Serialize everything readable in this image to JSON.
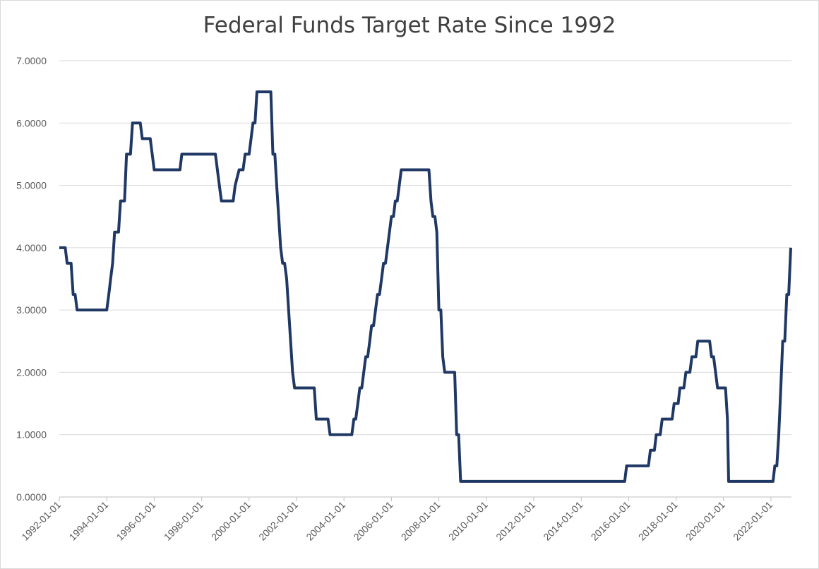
{
  "chart_data": {
    "type": "line",
    "title": "Federal Funds Target Rate Since 1992",
    "xlabel": "",
    "ylabel": "",
    "ylim": [
      0,
      7
    ],
    "xlim": [
      "1992-01-01",
      "2022-10-01"
    ],
    "grid": "horizontal",
    "legend": "none",
    "line_color": "#203864",
    "y_ticks": [
      "0.0000",
      "1.0000",
      "2.0000",
      "3.0000",
      "4.0000",
      "5.0000",
      "6.0000",
      "7.0000"
    ],
    "x_ticks": [
      "1992-01-01",
      "1994-01-01",
      "1996-01-01",
      "1998-01-01",
      "2000-01-01",
      "2002-01-01",
      "2004-01-01",
      "2006-01-01",
      "2008-01-01",
      "2010-01-01",
      "2012-01-01",
      "2014-01-01",
      "2016-01-01",
      "2018-01-01",
      "2020-01-01",
      "2022-01-01"
    ],
    "series": [
      {
        "name": "",
        "points": [
          [
            "1992-01-01",
            4.0
          ],
          [
            "1992-04-01",
            4.0
          ],
          [
            "1992-05-01",
            3.75
          ],
          [
            "1992-07-01",
            3.75
          ],
          [
            "1992-08-01",
            3.25
          ],
          [
            "1992-09-01",
            3.25
          ],
          [
            "1992-10-01",
            3.0
          ],
          [
            "1994-01-01",
            3.0
          ],
          [
            "1994-02-01",
            3.25
          ],
          [
            "1994-03-01",
            3.5
          ],
          [
            "1994-04-01",
            3.75
          ],
          [
            "1994-05-01",
            4.25
          ],
          [
            "1994-07-01",
            4.25
          ],
          [
            "1994-08-01",
            4.75
          ],
          [
            "1994-10-01",
            4.75
          ],
          [
            "1994-11-01",
            5.5
          ],
          [
            "1995-01-01",
            5.5
          ],
          [
            "1995-02-01",
            6.0
          ],
          [
            "1995-06-01",
            6.0
          ],
          [
            "1995-07-01",
            5.75
          ],
          [
            "1995-11-01",
            5.75
          ],
          [
            "1996-01-01",
            5.25
          ],
          [
            "1997-02-01",
            5.25
          ],
          [
            "1997-03-01",
            5.5
          ],
          [
            "1998-08-01",
            5.5
          ],
          [
            "1998-10-01",
            5.0
          ],
          [
            "1998-11-01",
            4.75
          ],
          [
            "1999-05-01",
            4.75
          ],
          [
            "1999-06-01",
            5.0
          ],
          [
            "1999-08-01",
            5.25
          ],
          [
            "1999-10-01",
            5.25
          ],
          [
            "1999-11-01",
            5.5
          ],
          [
            "2000-01-01",
            5.5
          ],
          [
            "2000-02-01",
            5.75
          ],
          [
            "2000-03-01",
            6.0
          ],
          [
            "2000-04-01",
            6.0
          ],
          [
            "2000-05-01",
            6.5
          ],
          [
            "2000-12-01",
            6.5
          ],
          [
            "2001-01-01",
            5.5
          ],
          [
            "2001-02-01",
            5.5
          ],
          [
            "2001-03-01",
            5.0
          ],
          [
            "2001-04-01",
            4.5
          ],
          [
            "2001-05-01",
            4.0
          ],
          [
            "2001-06-01",
            3.75
          ],
          [
            "2001-07-01",
            3.75
          ],
          [
            "2001-08-01",
            3.5
          ],
          [
            "2001-09-01",
            3.0
          ],
          [
            "2001-10-01",
            2.5
          ],
          [
            "2001-11-01",
            2.0
          ],
          [
            "2001-12-01",
            1.75
          ],
          [
            "2002-10-01",
            1.75
          ],
          [
            "2002-11-01",
            1.25
          ],
          [
            "2003-05-01",
            1.25
          ],
          [
            "2003-06-01",
            1.0
          ],
          [
            "2004-05-01",
            1.0
          ],
          [
            "2004-06-01",
            1.25
          ],
          [
            "2004-07-01",
            1.25
          ],
          [
            "2004-08-01",
            1.5
          ],
          [
            "2004-09-01",
            1.75
          ],
          [
            "2004-10-01",
            1.75
          ],
          [
            "2004-11-01",
            2.0
          ],
          [
            "2004-12-01",
            2.25
          ],
          [
            "2005-01-01",
            2.25
          ],
          [
            "2005-02-01",
            2.5
          ],
          [
            "2005-03-01",
            2.75
          ],
          [
            "2005-04-01",
            2.75
          ],
          [
            "2005-05-01",
            3.0
          ],
          [
            "2005-06-01",
            3.25
          ],
          [
            "2005-07-01",
            3.25
          ],
          [
            "2005-08-01",
            3.5
          ],
          [
            "2005-09-01",
            3.75
          ],
          [
            "2005-10-01",
            3.75
          ],
          [
            "2005-11-01",
            4.0
          ],
          [
            "2005-12-01",
            4.25
          ],
          [
            "2006-01-01",
            4.5
          ],
          [
            "2006-02-01",
            4.5
          ],
          [
            "2006-03-01",
            4.75
          ],
          [
            "2006-04-01",
            4.75
          ],
          [
            "2006-05-01",
            5.0
          ],
          [
            "2006-06-01",
            5.25
          ],
          [
            "2007-08-01",
            5.25
          ],
          [
            "2007-09-01",
            4.75
          ],
          [
            "2007-10-01",
            4.5
          ],
          [
            "2007-11-01",
            4.5
          ],
          [
            "2007-12-01",
            4.25
          ],
          [
            "2008-01-01",
            3.0
          ],
          [
            "2008-02-01",
            3.0
          ],
          [
            "2008-03-01",
            2.25
          ],
          [
            "2008-04-01",
            2.0
          ],
          [
            "2008-09-01",
            2.0
          ],
          [
            "2008-10-01",
            1.0
          ],
          [
            "2008-11-01",
            1.0
          ],
          [
            "2008-12-01",
            0.25
          ],
          [
            "2015-11-01",
            0.25
          ],
          [
            "2015-12-01",
            0.5
          ],
          [
            "2016-11-01",
            0.5
          ],
          [
            "2016-12-01",
            0.75
          ],
          [
            "2017-02-01",
            0.75
          ],
          [
            "2017-03-01",
            1.0
          ],
          [
            "2017-05-01",
            1.0
          ],
          [
            "2017-06-01",
            1.25
          ],
          [
            "2017-11-01",
            1.25
          ],
          [
            "2017-12-01",
            1.5
          ],
          [
            "2018-02-01",
            1.5
          ],
          [
            "2018-03-01",
            1.75
          ],
          [
            "2018-05-01",
            1.75
          ],
          [
            "2018-06-01",
            2.0
          ],
          [
            "2018-08-01",
            2.0
          ],
          [
            "2018-09-01",
            2.25
          ],
          [
            "2018-11-01",
            2.25
          ],
          [
            "2018-12-01",
            2.5
          ],
          [
            "2019-06-01",
            2.5
          ],
          [
            "2019-07-01",
            2.25
          ],
          [
            "2019-08-01",
            2.25
          ],
          [
            "2019-09-01",
            2.0
          ],
          [
            "2019-10-01",
            1.75
          ],
          [
            "2020-02-01",
            1.75
          ],
          [
            "2020-03-01",
            1.25
          ],
          [
            "2020-03-20",
            0.25
          ],
          [
            "2022-02-01",
            0.25
          ],
          [
            "2022-03-01",
            0.5
          ],
          [
            "2022-04-01",
            0.5
          ],
          [
            "2022-05-01",
            1.0
          ],
          [
            "2022-06-01",
            1.75
          ],
          [
            "2022-07-01",
            2.5
          ],
          [
            "2022-08-01",
            2.5
          ],
          [
            "2022-09-01",
            3.25
          ],
          [
            "2022-10-01",
            3.25
          ],
          [
            "2022-11-01",
            4.0
          ]
        ]
      }
    ]
  }
}
